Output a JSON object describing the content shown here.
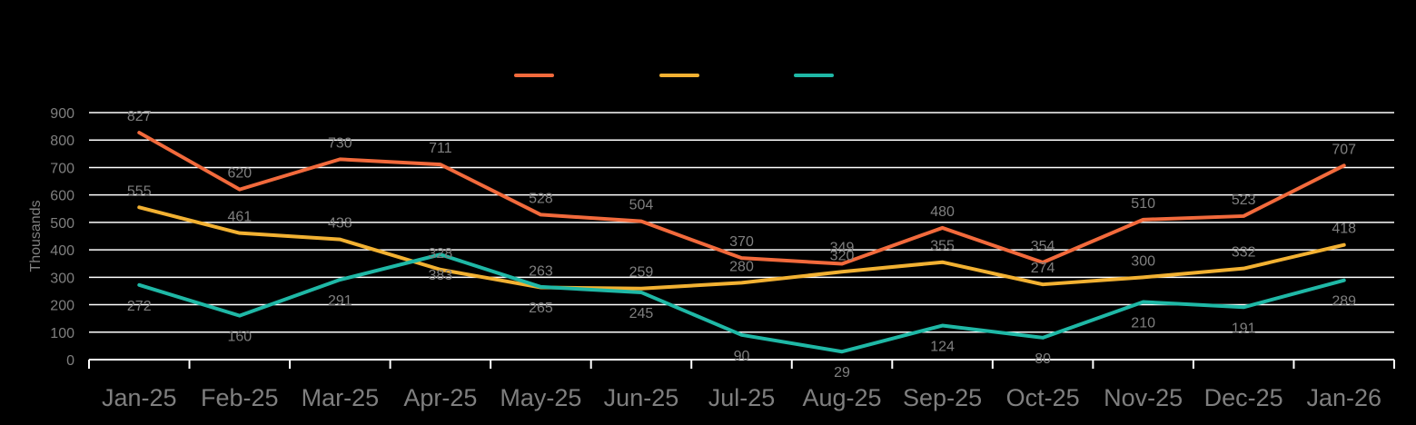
{
  "chart_data": {
    "type": "line",
    "ylabel": "Thousands",
    "ylim": [
      0,
      900
    ],
    "yticks": [
      0,
      100,
      200,
      300,
      400,
      500,
      600,
      700,
      800,
      900
    ],
    "grid": true,
    "legend_position": "top-center",
    "categories": [
      "Jan-25",
      "Feb-25",
      "Mar-25",
      "Apr-25",
      "May-25",
      "Jun-25",
      "Jul-25",
      "Aug-25",
      "Sep-25",
      "Oct-25",
      "Nov-25",
      "Dec-25",
      "Jan-26"
    ],
    "series": [
      {
        "color": "#f26a3c",
        "values": [
          827,
          620,
          730,
          711,
          528,
          504,
          370,
          349,
          480,
          354,
          510,
          523,
          707
        ]
      },
      {
        "color": "#f2b132",
        "values": [
          555,
          461,
          438,
          328,
          263,
          259,
          280,
          320,
          355,
          274,
          300,
          332,
          418
        ]
      },
      {
        "color": "#1fb8a6",
        "values": [
          272,
          160,
          291,
          383,
          265,
          245,
          90,
          29,
          124,
          80,
          210,
          191,
          289
        ]
      }
    ]
  }
}
